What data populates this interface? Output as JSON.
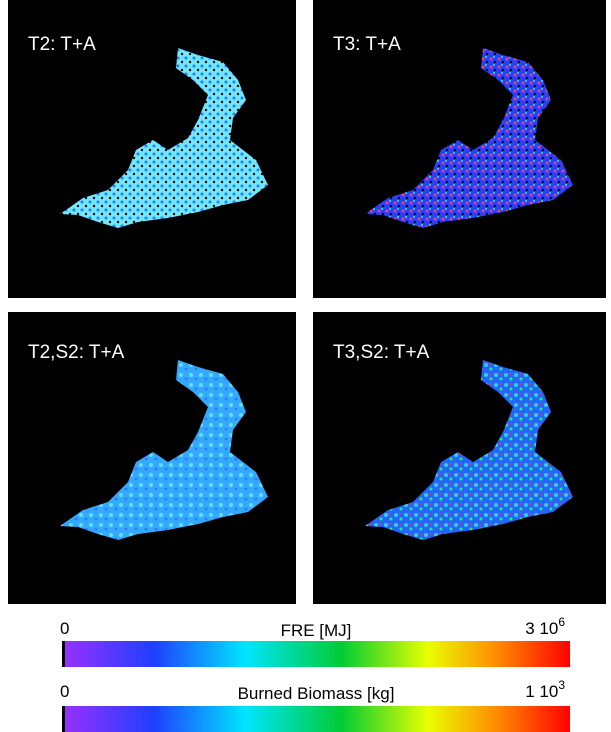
{
  "panels": [
    {
      "label": "T2: T+A"
    },
    {
      "label": "T3: T+A"
    },
    {
      "label": "T2,S2: T+A"
    },
    {
      "label": "T3,S2: T+A"
    }
  ],
  "colorbars": [
    {
      "title": "FRE [MJ]",
      "min": "0",
      "max": {
        "base": "3 10",
        "exponent": "6"
      }
    },
    {
      "title": "Burned Biomass [kg]",
      "min": "0",
      "max": {
        "base": "1 10",
        "exponent": "3"
      }
    }
  ]
}
